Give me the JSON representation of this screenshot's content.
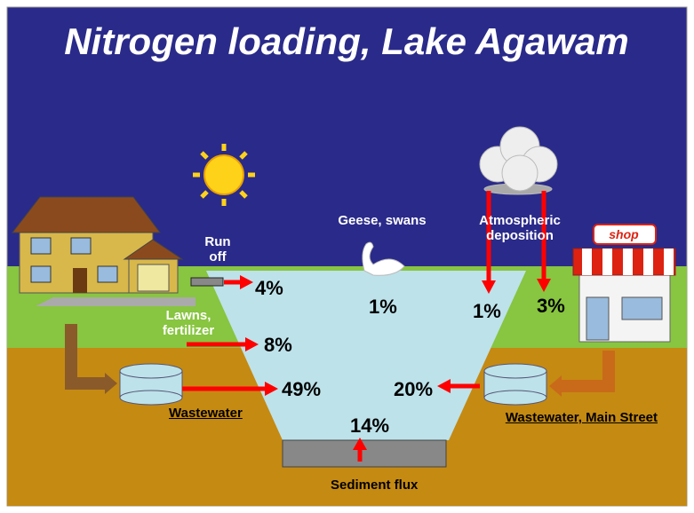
{
  "title": "Nitrogen loading, Lake Agawam",
  "shop_sign": "shop",
  "sources": [
    {
      "label": "Run off",
      "value": "4%"
    },
    {
      "label": "Lawns, fertilizer",
      "value": "8%"
    },
    {
      "label": "Wastewater",
      "value": "49%"
    },
    {
      "label": "Geese, swans",
      "value": "1%"
    },
    {
      "label": "Atmospheric deposition",
      "values": [
        "1%",
        "3%"
      ]
    },
    {
      "label": "Wastewater, Main Street",
      "value": "20%"
    },
    {
      "label": "Sediment flux",
      "value": "14%"
    }
  ]
}
